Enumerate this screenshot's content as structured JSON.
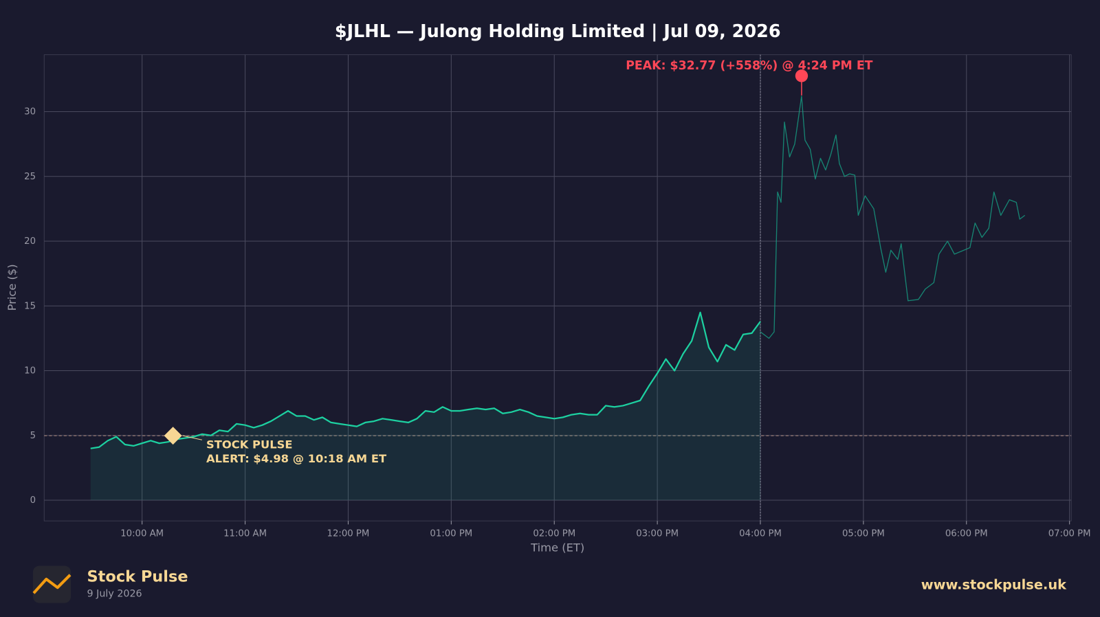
{
  "chart_data": {
    "type": "line",
    "title": "$JLHL — Julong Holding Limited  |  Jul 09, 2026",
    "x_label": "Time (ET)",
    "y_label": "Price ($)",
    "xlim": [
      "09:03 AM",
      "07:01 PM"
    ],
    "xticks": [
      "10:00 AM",
      "11:00 AM",
      "12:00 PM",
      "01:00 PM",
      "02:00 PM",
      "03:00 PM",
      "04:00 PM",
      "05:00 PM",
      "06:00 PM",
      "07:00 PM"
    ],
    "ylim": [
      -1.6,
      34.4
    ],
    "yticks": [
      0,
      5,
      10,
      15,
      20,
      25,
      30
    ],
    "grid": true,
    "market_close": "04:00 PM",
    "series": [
      {
        "color": "#1dd1a1",
        "fill": true,
        "x": [
          "09:30 AM",
          "09:35 AM",
          "09:40 AM",
          "09:45 AM",
          "09:50 AM",
          "09:55 AM",
          "10:00 AM",
          "10:05 AM",
          "10:10 AM",
          "10:15 AM",
          "10:20 AM",
          "10:25 AM",
          "10:30 AM",
          "10:35 AM",
          "10:40 AM",
          "10:45 AM",
          "10:50 AM",
          "10:55 AM",
          "11:00 AM",
          "11:05 AM",
          "11:10 AM",
          "11:15 AM",
          "11:20 AM",
          "11:25 AM",
          "11:30 AM",
          "11:35 AM",
          "11:40 AM",
          "11:45 AM",
          "11:50 AM",
          "11:55 AM",
          "12:00 PM",
          "12:05 PM",
          "12:10 PM",
          "12:15 PM",
          "12:20 PM",
          "12:25 PM",
          "12:30 PM",
          "12:35 PM",
          "12:40 PM",
          "12:45 PM",
          "12:50 PM",
          "12:55 PM",
          "01:00 PM",
          "01:05 PM",
          "01:10 PM",
          "01:15 PM",
          "01:20 PM",
          "01:25 PM",
          "01:30 PM",
          "01:35 PM",
          "01:40 PM",
          "01:45 PM",
          "01:50 PM",
          "01:55 PM",
          "02:00 PM",
          "02:05 PM",
          "02:10 PM",
          "02:15 PM",
          "02:20 PM",
          "02:25 PM",
          "02:30 PM",
          "02:35 PM",
          "02:40 PM",
          "02:45 PM",
          "02:50 PM",
          "02:55 PM",
          "03:00 PM",
          "03:05 PM",
          "03:10 PM",
          "03:15 PM",
          "03:20 PM",
          "03:25 PM",
          "03:30 PM",
          "03:35 PM",
          "03:40 PM",
          "03:45 PM",
          "03:50 PM",
          "03:55 PM",
          "04:00 PM"
        ],
        "values": [
          4.0,
          4.1,
          4.6,
          4.9,
          4.3,
          4.2,
          4.4,
          4.6,
          4.4,
          4.5,
          4.7,
          4.8,
          4.9,
          5.1,
          5.0,
          5.4,
          5.3,
          5.9,
          5.8,
          5.6,
          5.8,
          6.1,
          6.5,
          6.9,
          6.5,
          6.5,
          6.2,
          6.4,
          6.0,
          5.9,
          5.8,
          5.7,
          6.0,
          6.1,
          6.3,
          6.2,
          6.1,
          6.0,
          6.3,
          6.9,
          6.8,
          7.2,
          6.9,
          6.9,
          7.0,
          7.1,
          7.0,
          7.1,
          6.7,
          6.8,
          7.0,
          6.8,
          6.5,
          6.4,
          6.3,
          6.4,
          6.6,
          6.7,
          6.6,
          6.6,
          7.3,
          7.2,
          7.3,
          7.5,
          7.7,
          8.8,
          9.8,
          10.9,
          10.0,
          11.3,
          12.3,
          14.5,
          11.8,
          10.7,
          12.0,
          11.6,
          12.8,
          12.9,
          13.8
        ]
      },
      {
        "color": "#16a085",
        "fill": false,
        "x": [
          "04:00 PM",
          "04:05 PM",
          "04:08 PM",
          "04:10 PM",
          "04:12 PM",
          "04:14 PM",
          "04:17 PM",
          "04:20 PM",
          "04:24 PM",
          "04:26 PM",
          "04:29 PM",
          "04:32 PM",
          "04:35 PM",
          "04:38 PM",
          "04:41 PM",
          "04:44 PM",
          "04:46 PM",
          "04:49 PM",
          "04:52 PM",
          "04:55 PM",
          "04:57 PM",
          "05:01 PM",
          "05:06 PM",
          "05:10 PM",
          "05:13 PM",
          "05:16 PM",
          "05:20 PM",
          "05:22 PM",
          "05:26 PM",
          "05:32 PM",
          "05:36 PM",
          "05:41 PM",
          "05:44 PM",
          "05:49 PM",
          "05:53 PM",
          "06:02 PM",
          "06:05 PM",
          "06:09 PM",
          "06:13 PM",
          "06:16 PM",
          "06:20 PM",
          "06:25 PM",
          "06:29 PM",
          "06:31 PM",
          "06:34 PM"
        ],
        "values": [
          13.0,
          12.5,
          13.0,
          23.8,
          23.0,
          29.2,
          26.5,
          27.5,
          31.2,
          27.8,
          27.1,
          24.8,
          26.4,
          25.5,
          26.7,
          28.2,
          26.0,
          25.0,
          25.2,
          25.1,
          22.0,
          23.5,
          22.5,
          19.5,
          17.6,
          19.3,
          18.6,
          19.8,
          15.4,
          15.5,
          16.3,
          16.8,
          19.0,
          20.0,
          19.0,
          19.5,
          21.4,
          20.3,
          21.0,
          23.8,
          22.0,
          23.2,
          23.0,
          21.7,
          22.0
        ]
      }
    ],
    "annotations": [
      {
        "text": "PEAK: $32.77 (+558%) @ 4:24 PM ET",
        "x": "04:24 PM",
        "y": 32.77,
        "color": "#ff4757"
      },
      {
        "lines": [
          "STOCK PULSE",
          "ALERT: $4.98 @ 10:18 AM ET"
        ],
        "x": "10:18 AM",
        "y": 4.98,
        "color": "#f7d794"
      }
    ]
  },
  "footer": {
    "brand": "Stock Pulse",
    "date": "9 July 2026",
    "url": "www.stockpulse.uk"
  }
}
